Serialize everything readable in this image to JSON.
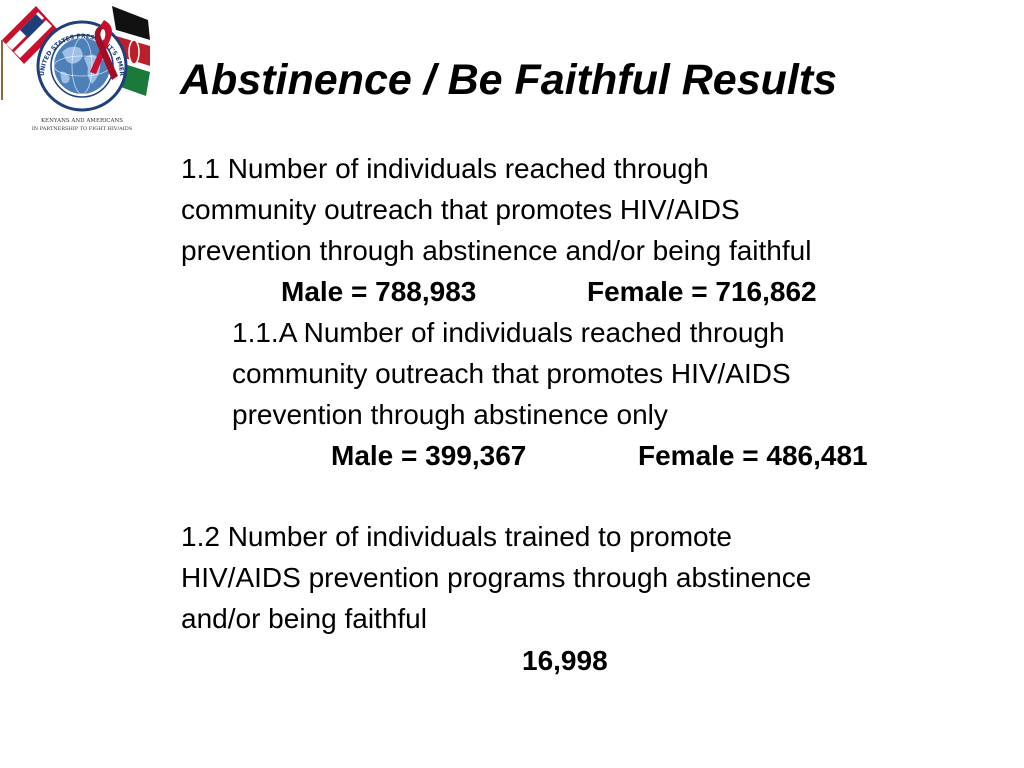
{
  "logo": {
    "icon": "pepfar-kenya-seal-with-flags",
    "ring_text": "UNITED STATES PRESIDENT'S EMERGENCY PLAN FOR AIDS RELIEF",
    "caption_line1": "KENYANS AND AMERICANS",
    "caption_line2": "IN PARTNERSHIP TO FIGHT HIV/AIDS",
    "colors": {
      "ring": "#1f3f7a",
      "globe": "#4d7fb8",
      "ribbon": "#c8102e"
    }
  },
  "title": "Abstinence / Be Faithful Results",
  "items": [
    {
      "lines": [
        "1.1 Number of individuals reached through",
        "community outreach that promotes HIV/AIDS",
        "prevention through abstinence and/or being faithful"
      ],
      "male": "Male = 788,983",
      "female": "Female = 716,862"
    },
    {
      "lines": [
        "1.1.A Number of individuals reached through",
        "community outreach that promotes HIV/AIDS",
        "prevention through abstinence only"
      ],
      "male": "Male = 399,367",
      "female": "Female = 486,481"
    },
    {
      "lines": [
        "1.2 Number of individuals trained to promote",
        "HIV/AIDS prevention programs through abstinence",
        "and/or being faithful"
      ],
      "total": "16,998"
    }
  ]
}
